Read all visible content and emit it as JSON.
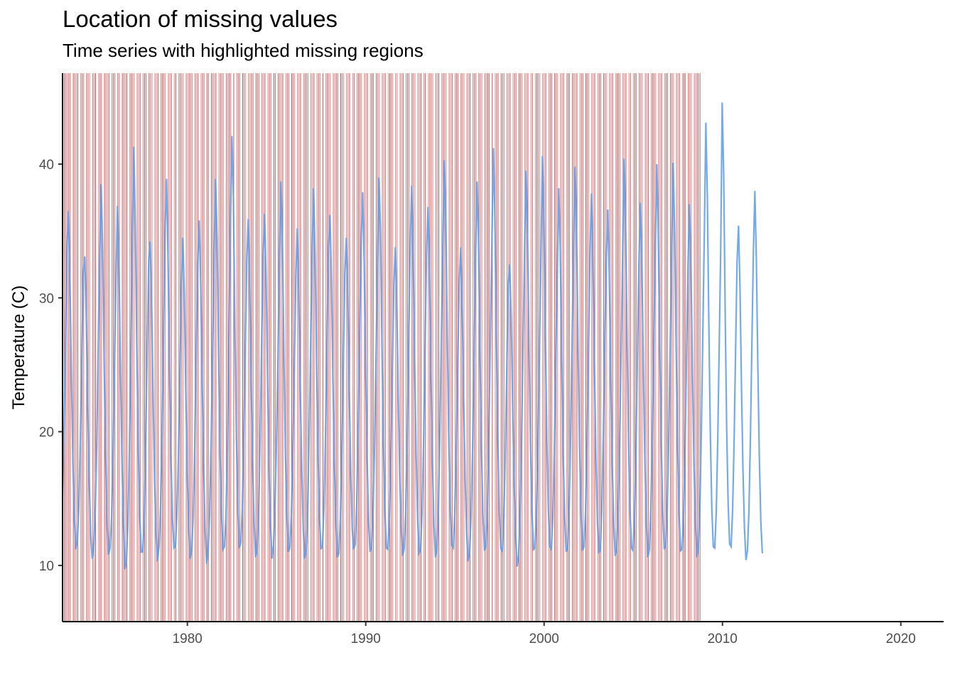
{
  "chart_data": {
    "type": "line",
    "title": "Location of missing values",
    "subtitle": "Time series with highlighted missing regions",
    "xlabel": "",
    "ylabel": "Temperature (C)",
    "xlim": [
      1973.0,
      2022.4
    ],
    "ylim": [
      5.8,
      46.8
    ],
    "x_ticks": [
      1980,
      1990,
      2000,
      2010,
      2020
    ],
    "y_ticks": [
      10,
      20,
      30,
      40
    ],
    "grid": false,
    "legend": "none",
    "colors": {
      "line": "#5B9BE6",
      "missing": "#C0292C",
      "axis": "#000000",
      "tick_label": "#4D4D4D"
    },
    "series": [
      {
        "x_start": 1973.0,
        "x_step": 0.0833,
        "values": [
          15.2,
          20.1,
          26.7,
          33.8,
          36.5,
          31.2,
          24.0,
          17.6,
          13.4,
          11.2,
          11.9,
          14.5,
          19.6,
          25.8,
          31.9,
          33.1,
          28.4,
          21.8,
          16.2,
          12.1,
          10.5,
          11.4,
          14.0,
          18.9,
          26.2,
          33.0,
          38.5,
          33.6,
          25.1,
          18.2,
          13.0,
          10.8,
          11.3,
          13.6,
          18.3,
          25.2,
          31.5,
          36.9,
          32.3,
          24.6,
          17.9,
          13.1,
          9.7,
          10.3,
          13.2,
          18.8,
          26.5,
          34.3,
          41.3,
          35.1,
          26.2,
          18.6,
          13.5,
          11.0,
          11.0,
          13.6,
          19.5,
          26.0,
          32.8,
          34.2,
          29.4,
          22.3,
          16.1,
          12.2,
          10.3,
          11.5,
          14.6,
          19.9,
          27.4,
          35.1,
          38.9,
          33.0,
          24.6,
          18.0,
          13.4,
          11.3,
          11.4,
          13.9,
          18.2,
          24.6,
          30.8,
          34.5,
          30.1,
          22.8,
          16.7,
          12.6,
          10.5,
          11.1,
          13.8,
          19.1,
          26.0,
          32.5,
          35.8,
          31.1,
          23.6,
          17.3,
          12.6,
          10.1,
          11.0,
          13.9,
          19.0,
          25.8,
          33.2,
          38.9,
          34.4,
          26.0,
          18.5,
          13.8,
          11.2,
          11.4,
          13.6,
          18.7,
          27.5,
          35.6,
          42.1,
          37.4,
          27.9,
          19.6,
          14.1,
          11.3,
          11.7,
          14.3,
          19.8,
          26.2,
          32.7,
          35.9,
          31.0,
          23.5,
          17.3,
          13.0,
          10.6,
          11.2,
          14.1,
          19.4,
          26.7,
          33.2,
          36.3,
          31.5,
          23.8,
          17.0,
          12.9,
          10.5,
          11.5,
          14.4,
          19.1,
          25.6,
          32.8,
          38.7,
          34.1,
          25.7,
          18.4,
          13.7,
          11.0,
          11.3,
          13.8,
          18.5,
          24.9,
          31.4,
          35.2,
          30.6,
          23.3,
          17.1,
          12.8,
          10.5,
          11.0,
          14.1,
          19.7,
          26.6,
          33.4,
          38.2,
          33.0,
          24.8,
          18.0,
          13.4,
          11.2,
          11.5,
          14.4,
          19.9,
          27.0,
          33.6,
          36.2,
          31.4,
          23.8,
          17.4,
          13.1,
          10.6,
          10.9,
          13.6,
          18.6,
          25.1,
          31.7,
          34.5,
          30.2,
          22.9,
          16.8,
          12.7,
          11.2,
          11.6,
          14.7,
          20.4,
          27.6,
          34.2,
          37.9,
          32.8,
          24.7,
          17.9,
          13.2,
          11.0,
          11.4,
          14.0,
          18.8,
          25.5,
          32.3,
          39.0,
          35.1,
          26.4,
          18.9,
          14.0,
          11.3,
          11.2,
          13.6,
          18.2,
          24.6,
          30.9,
          33.8,
          29.5,
          22.4,
          16.5,
          12.6,
          10.7,
          11.3,
          14.2,
          19.6,
          26.8,
          33.9,
          38.4,
          33.2,
          25.0,
          18.3,
          13.5,
          10.9,
          11.1,
          13.9,
          19.3,
          26.3,
          33.2,
          36.8,
          31.8,
          24.1,
          17.6,
          13.0,
          10.6,
          11.2,
          14.4,
          20.1,
          27.3,
          34.1,
          40.3,
          35.6,
          26.9,
          19.2,
          14.1,
          11.5,
          11.3,
          13.9,
          18.8,
          25.0,
          31.1,
          33.8,
          29.4,
          22.2,
          16.4,
          12.4,
          10.3,
          11.0,
          13.7,
          18.9,
          26.0,
          33.1,
          38.7,
          34.2,
          25.8,
          18.6,
          13.7,
          11.1,
          11.4,
          14.5,
          20.0,
          27.2,
          34.3,
          41.2,
          36.0,
          27.1,
          19.3,
          14.0,
          11.3,
          11.0,
          13.4,
          18.1,
          24.7,
          31.0,
          32.5,
          28.3,
          21.6,
          16.0,
          12.1,
          9.9,
          10.8,
          13.9,
          19.5,
          26.8,
          33.7,
          39.5,
          34.4,
          26.0,
          18.8,
          13.9,
          11.2,
          11.3,
          14.0,
          19.1,
          26.1,
          33.0,
          40.6,
          35.9,
          27.0,
          19.2,
          14.1,
          11.4,
          11.2,
          13.6,
          18.6,
          25.4,
          32.1,
          38.2,
          33.6,
          25.3,
          18.2,
          13.5,
          11.0,
          11.3,
          14.3,
          19.8,
          26.9,
          33.8,
          39.8,
          34.6,
          26.1,
          18.8,
          13.8,
          11.1,
          11.4,
          14.0,
          19.0,
          26.0,
          33.2,
          37.8,
          33.0,
          24.9,
          18.0,
          13.3,
          10.9,
          11.2,
          14.4,
          20.0,
          26.7,
          32.9,
          36.6,
          31.7,
          24.0,
          17.5,
          13.0,
          10.7,
          11.3,
          14.1,
          19.2,
          26.1,
          33.4,
          40.4,
          35.3,
          26.6,
          19.0,
          13.9,
          11.3,
          11.1,
          13.7,
          18.9,
          25.9,
          32.8,
          37.1,
          32.2,
          24.3,
          17.6,
          13.0,
          10.6,
          11.2,
          14.3,
          19.7,
          26.8,
          33.9,
          40.0,
          34.8,
          26.2,
          18.9,
          13.9,
          11.2,
          11.5,
          14.2,
          19.4,
          26.4,
          33.5,
          40.1,
          35.0,
          26.3,
          18.8,
          13.8,
          11.1,
          11.2,
          13.8,
          18.7,
          25.6,
          32.4,
          37.0,
          32.1,
          24.2,
          17.6,
          13.0,
          10.6,
          11.3,
          14.5,
          20.2,
          27.6,
          35.0,
          43.1,
          37.6,
          28.1,
          19.9,
          14.3,
          11.4,
          11.3,
          14.0,
          19.3,
          26.5,
          33.6,
          44.6,
          39.2,
          29.0,
          20.3,
          14.6,
          11.6,
          11.4,
          14.1,
          19.2,
          26.0,
          32.7,
          35.4,
          30.6,
          23.2,
          17.0,
          12.7,
          10.4,
          11.1,
          14.1,
          19.6,
          26.7,
          33.5,
          38.0,
          32.8,
          24.8,
          18.0,
          13.3,
          10.9
        ]
      }
    ],
    "missing": {
      "note": "Missing observations are shaded as vertical red bands spanning the full y-range",
      "x_start": 1973.0,
      "x_step": 0.0833,
      "mask": "1111110111101110111011101110111101110110111101111011101110111011101111011101101111011111011101110110111101111011110101110111011110111011101110110111101110111011101111011101110101111011110111011101101111011101110111011101111011011101110111011101101111011101111011101110111011101110111011110101110111011101110111011101101111011101110111011101110111101110111011101110111011101111011101101110111011101111011101110111011101110111011111"
    }
  }
}
